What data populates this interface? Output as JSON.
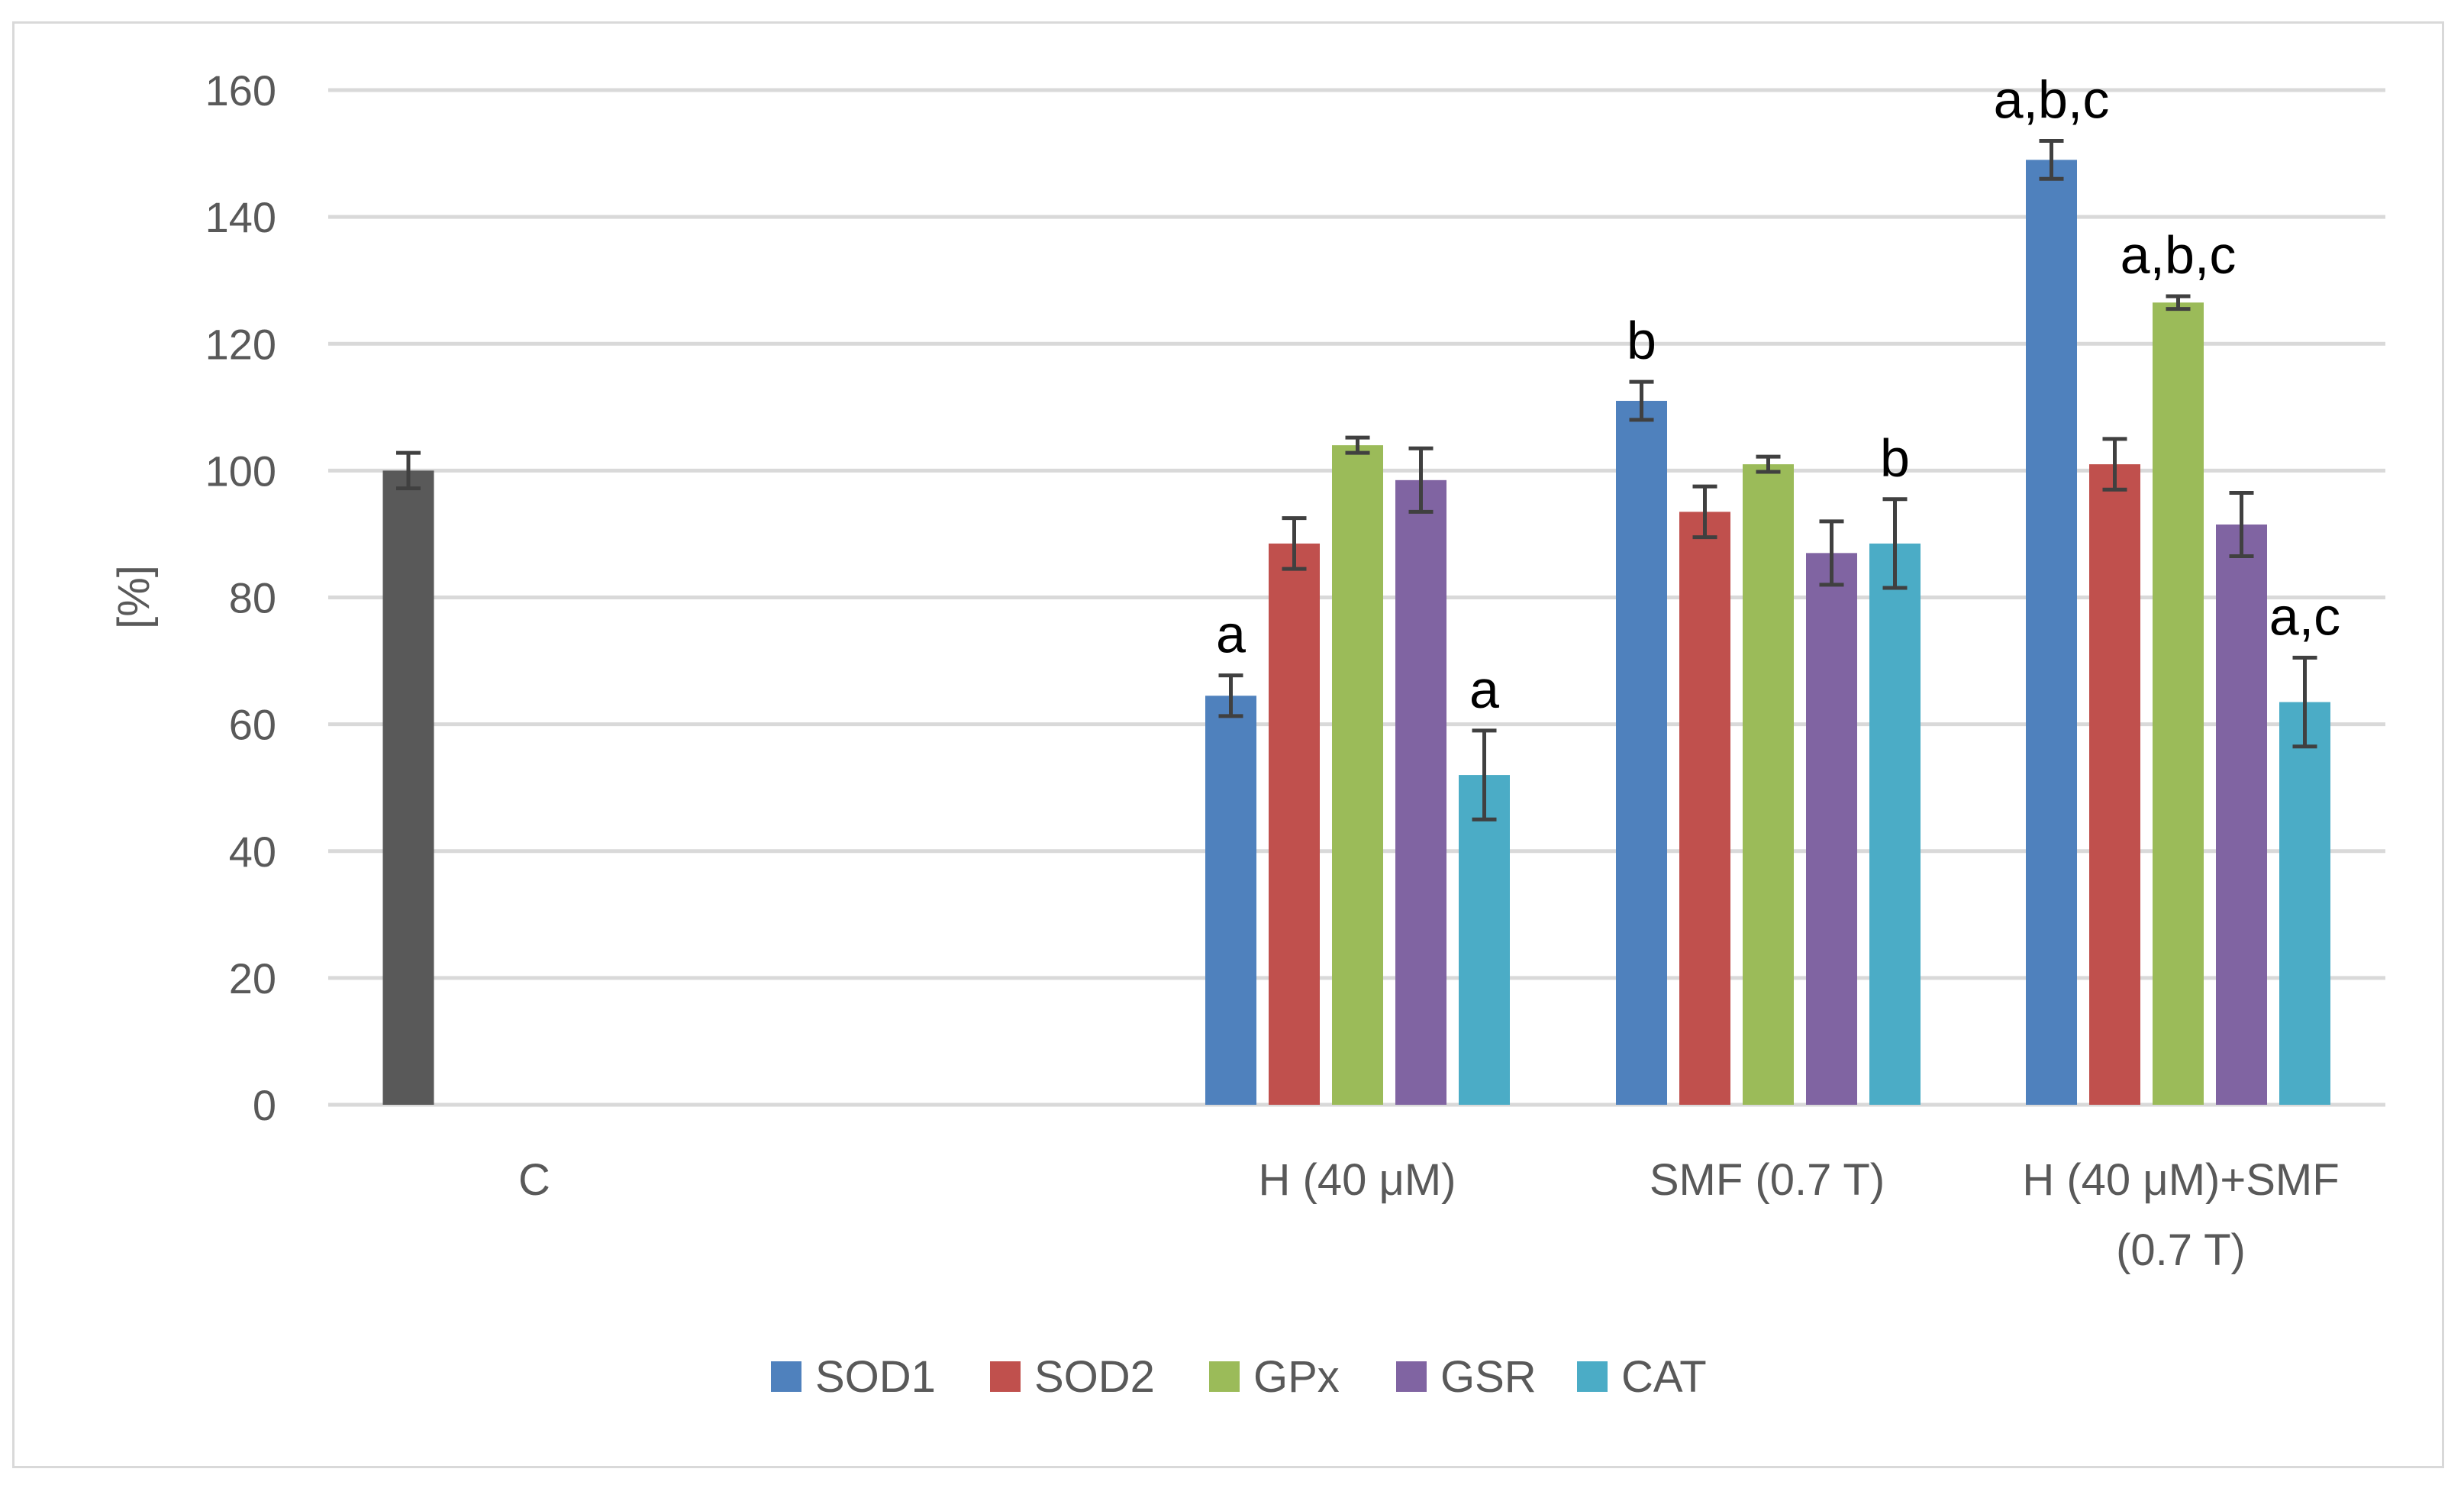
{
  "chart_data": {
    "type": "bar",
    "title": "",
    "xlabel": "",
    "ylabel": "[%]",
    "ylim": [
      0,
      160
    ],
    "yticks": [
      0,
      20,
      40,
      60,
      80,
      100,
      120,
      140,
      160
    ],
    "grid": true,
    "legend_position": "bottom",
    "categories": [
      {
        "lines": [
          "C"
        ]
      },
      {
        "lines": [
          "H (40 μM)"
        ]
      },
      {
        "lines": [
          "SMF (0.7 T)"
        ]
      },
      {
        "lines": [
          "H (40 μM)+SMF",
          "(0.7 T)"
        ]
      }
    ],
    "control": {
      "name": "C",
      "value": 100,
      "error": 2.8,
      "color": "#595959"
    },
    "series": [
      {
        "name": "SOD1",
        "color": "#4f81bd",
        "values": [
          null,
          64.5,
          111,
          149
        ],
        "errors": [
          null,
          3.2,
          3,
          3
        ],
        "annotations": [
          null,
          "a",
          "b",
          "a,b,c"
        ]
      },
      {
        "name": "SOD2",
        "color": "#c0504d",
        "values": [
          null,
          88.5,
          93.5,
          101
        ],
        "errors": [
          null,
          4,
          4,
          4
        ],
        "annotations": [
          null,
          "",
          "",
          ""
        ]
      },
      {
        "name": "GPx",
        "color": "#9bbb59",
        "values": [
          null,
          104,
          101,
          126.5
        ],
        "errors": [
          null,
          1.2,
          1.2,
          1
        ],
        "annotations": [
          null,
          "",
          "",
          "a,b,c"
        ]
      },
      {
        "name": "GSR",
        "color": "#8064a2",
        "values": [
          null,
          98.5,
          87,
          91.5
        ],
        "errors": [
          null,
          5,
          5,
          5
        ],
        "annotations": [
          null,
          "",
          "",
          ""
        ]
      },
      {
        "name": "CAT",
        "color": "#4bacc6",
        "values": [
          null,
          52,
          88.5,
          63.5
        ],
        "errors": [
          null,
          7,
          7,
          7
        ],
        "annotations": [
          null,
          "a",
          "b",
          "a,c"
        ]
      }
    ]
  }
}
